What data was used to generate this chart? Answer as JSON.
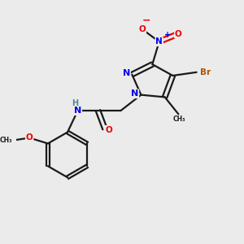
{
  "bg_color": "#ebebeb",
  "bond_color": "#1a1a1a",
  "colors": {
    "N": "#0000ee",
    "O": "#ee0000",
    "Br": "#aa5500",
    "C": "#1a1a1a",
    "H": "#4a8888"
  }
}
